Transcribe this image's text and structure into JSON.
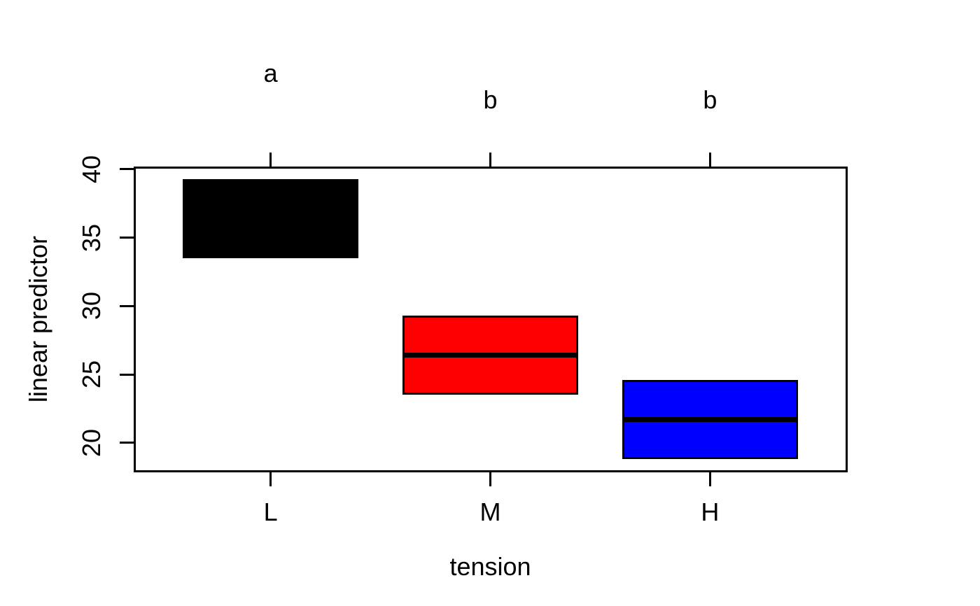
{
  "figure": {
    "background": "#ffffff",
    "text_color": "#000000"
  },
  "chart_data": {
    "type": "boxplot",
    "subtype": "cld-confidence-boxes",
    "title": "",
    "xlabel": "tension",
    "ylabel": "linear predictor",
    "categories": [
      "L",
      "M",
      "H"
    ],
    "series": [
      {
        "name": "L",
        "letter": "a",
        "letter_line": 0,
        "lower": 33.5,
        "median": 36.4,
        "upper": 39.3,
        "color": "#000000"
      },
      {
        "name": "M",
        "letter": "b",
        "letter_line": 1,
        "lower": 23.5,
        "median": 26.4,
        "upper": 29.3,
        "color": "#ff0000"
      },
      {
        "name": "H",
        "letter": "b",
        "letter_line": 1,
        "lower": 18.8,
        "median": 21.7,
        "upper": 24.6,
        "color": "#0000ff"
      }
    ],
    "y_ticks": [
      20,
      25,
      30,
      35,
      40
    ],
    "ylim": [
      17.95,
      40.15
    ],
    "x_positions": [
      1,
      2,
      3
    ],
    "xlim": [
      0.38,
      3.62
    ],
    "box_width": 0.8,
    "grid": false,
    "legend": false,
    "frame": true,
    "top_axis_ticks": true
  }
}
